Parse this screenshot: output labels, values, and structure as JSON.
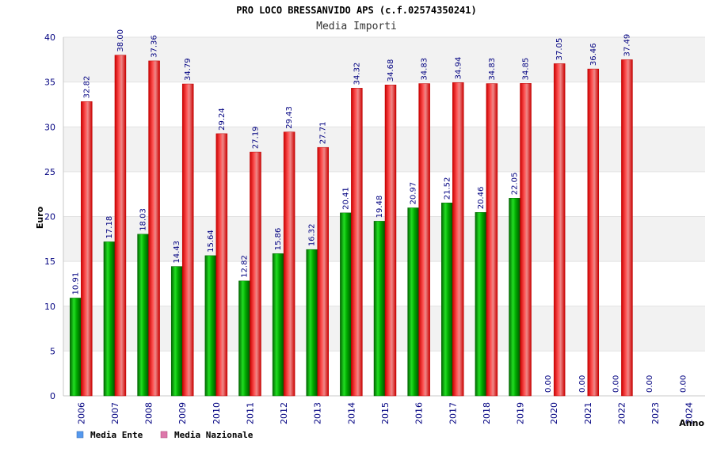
{
  "chart_data": {
    "type": "bar",
    "title": "PRO LOCO BRESSANVIDO APS (c.f.02574350241)",
    "subtitle": "Media Importi",
    "xlabel": "Anno",
    "ylabel": "Euro",
    "ylim": [
      0,
      40
    ],
    "yticks": [
      0,
      5,
      10,
      15,
      20,
      25,
      30,
      35,
      40
    ],
    "grid": true,
    "legend_position": "bottom-left",
    "categories": [
      "2006",
      "2007",
      "2008",
      "2009",
      "2010",
      "2011",
      "2012",
      "2013",
      "2014",
      "2015",
      "2016",
      "2017",
      "2018",
      "2019",
      "2020",
      "2021",
      "2022",
      "2023",
      "2024"
    ],
    "series": [
      {
        "name": "Media Ente",
        "color": "#00aa00",
        "legend_color": "#5599ee",
        "values": [
          10.91,
          17.18,
          18.03,
          14.43,
          15.64,
          12.82,
          15.86,
          16.32,
          20.41,
          19.48,
          20.97,
          21.52,
          20.46,
          22.05,
          0,
          0,
          0,
          0,
          0
        ],
        "labels": [
          "10.91",
          "17.18",
          "18.03",
          "14.43",
          "15.64",
          "12.82",
          "15.86",
          "16.32",
          "20.41",
          "19.48",
          "20.97",
          "21.52",
          "20.46",
          "22.05",
          "0.00",
          "0.00",
          "0.00",
          "0.00",
          "0.00"
        ]
      },
      {
        "name": "Media Nazionale",
        "color": "#ee1111",
        "legend_color": "#dd77aa",
        "values": [
          32.82,
          38.0,
          37.36,
          34.79,
          29.24,
          27.19,
          29.43,
          27.71,
          34.32,
          34.68,
          34.83,
          34.94,
          34.83,
          34.85,
          37.05,
          36.46,
          37.49,
          null,
          null
        ],
        "labels": [
          "32.82",
          "38.00",
          "37.36",
          "34.79",
          "29.24",
          "27.19",
          "29.43",
          "27.71",
          "34.32",
          "34.68",
          "34.83",
          "34.94",
          "34.83",
          "34.85",
          "37.05",
          "36.46",
          "37.49",
          "",
          ""
        ]
      }
    ]
  }
}
